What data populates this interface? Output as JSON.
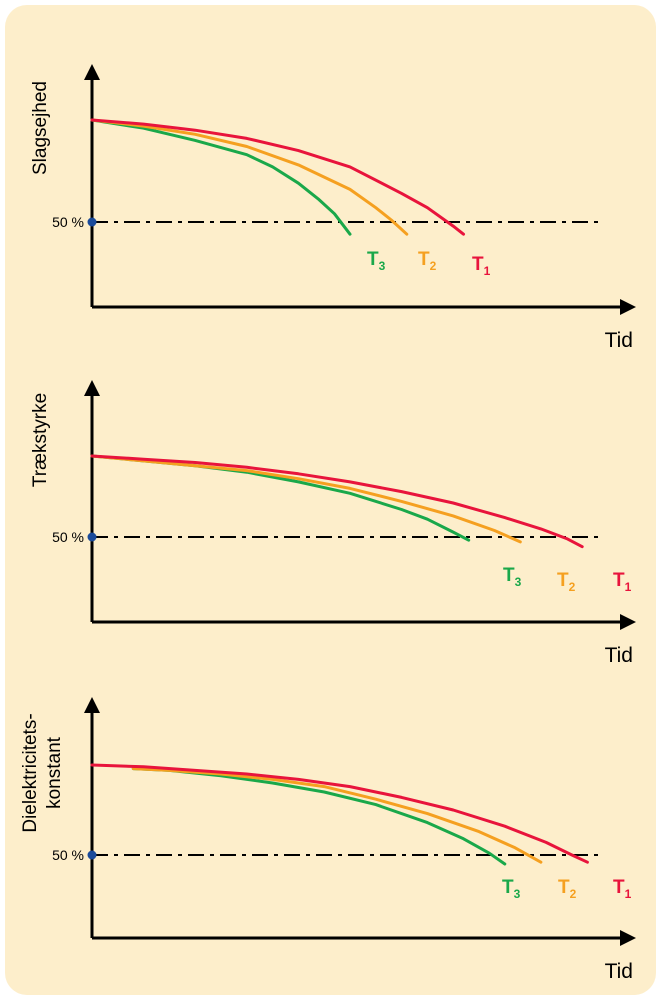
{
  "colors": {
    "background": "#fdeecb",
    "axis": "#000000",
    "T1": "#e8143c",
    "T2": "#f5a020",
    "T3": "#1aa84a",
    "marker": "#1a4a9a"
  },
  "chart_data": [
    {
      "type": "line",
      "ylabel": "Slagsejhed",
      "xlabel": "Tid",
      "reference_label": "50 %",
      "reference_value": 50,
      "series": [
        {
          "name": "T1",
          "label_main": "T",
          "label_sub": "1",
          "x": [
            0,
            10,
            20,
            30,
            40,
            50,
            60,
            65,
            70,
            72
          ],
          "y": [
            100,
            98,
            95,
            91,
            85,
            77,
            64,
            57,
            48,
            44
          ]
        },
        {
          "name": "T2",
          "label_main": "T",
          "label_sub": "2",
          "x": [
            0,
            10,
            20,
            30,
            40,
            50,
            55,
            58,
            61
          ],
          "y": [
            100,
            97,
            93,
            87,
            78,
            66,
            57,
            51,
            44
          ]
        },
        {
          "name": "T3",
          "label_main": "T",
          "label_sub": "3",
          "x": [
            0,
            10,
            20,
            30,
            35,
            40,
            44,
            47,
            50
          ],
          "y": [
            100,
            96,
            90,
            83,
            77,
            69,
            61,
            54,
            44
          ]
        }
      ]
    },
    {
      "type": "line",
      "ylabel": "Trækstyrke",
      "xlabel": "Tid",
      "reference_label": "50 %",
      "reference_value": 50,
      "series": [
        {
          "name": "T1",
          "label_main": "T",
          "label_sub": "1",
          "x": [
            0,
            10,
            20,
            30,
            40,
            50,
            60,
            70,
            80,
            87,
            92,
            95
          ],
          "y": [
            100,
            98,
            96,
            93,
            89,
            84,
            78,
            71,
            62,
            55,
            49,
            44
          ]
        },
        {
          "name": "T2",
          "label_main": "T",
          "label_sub": "2",
          "x": [
            0,
            10,
            20,
            30,
            40,
            50,
            60,
            70,
            78,
            83
          ],
          "y": [
            100,
            97,
            94,
            91,
            86,
            80,
            72,
            63,
            54,
            47
          ]
        },
        {
          "name": "T3",
          "label_main": "T",
          "label_sub": "3",
          "x": [
            0,
            10,
            20,
            30,
            40,
            50,
            60,
            65,
            70,
            73
          ],
          "y": [
            100,
            97,
            94,
            90,
            84,
            77,
            67,
            61,
            53,
            48
          ]
        }
      ]
    },
    {
      "type": "line",
      "ylabel": "Dielektricitets-konstant",
      "ylabel_lines": [
        "Dielektricitets-",
        "konstant"
      ],
      "xlabel": "Tid",
      "reference_label": "50 %",
      "reference_value": 50,
      "series": [
        {
          "name": "T1",
          "label_main": "T",
          "label_sub": "1",
          "x": [
            0,
            10,
            20,
            30,
            40,
            50,
            60,
            70,
            80,
            88,
            93,
            96
          ],
          "y": [
            100,
            99,
            97,
            95,
            92,
            88,
            82,
            75,
            66,
            57,
            50,
            46
          ]
        },
        {
          "name": "T2",
          "label_main": "T",
          "label_sub": "2",
          "x": [
            8,
            15,
            25,
            35,
            45,
            55,
            65,
            75,
            82,
            87
          ],
          "y": [
            98,
            97,
            95,
            92,
            88,
            81,
            73,
            63,
            54,
            46
          ]
        },
        {
          "name": "T3",
          "label_main": "T",
          "label_sub": "3",
          "x": [
            8,
            15,
            25,
            35,
            45,
            55,
            65,
            72,
            77,
            80
          ],
          "y": [
            98,
            97,
            94,
            90,
            85,
            78,
            68,
            59,
            51,
            45
          ]
        }
      ]
    }
  ]
}
